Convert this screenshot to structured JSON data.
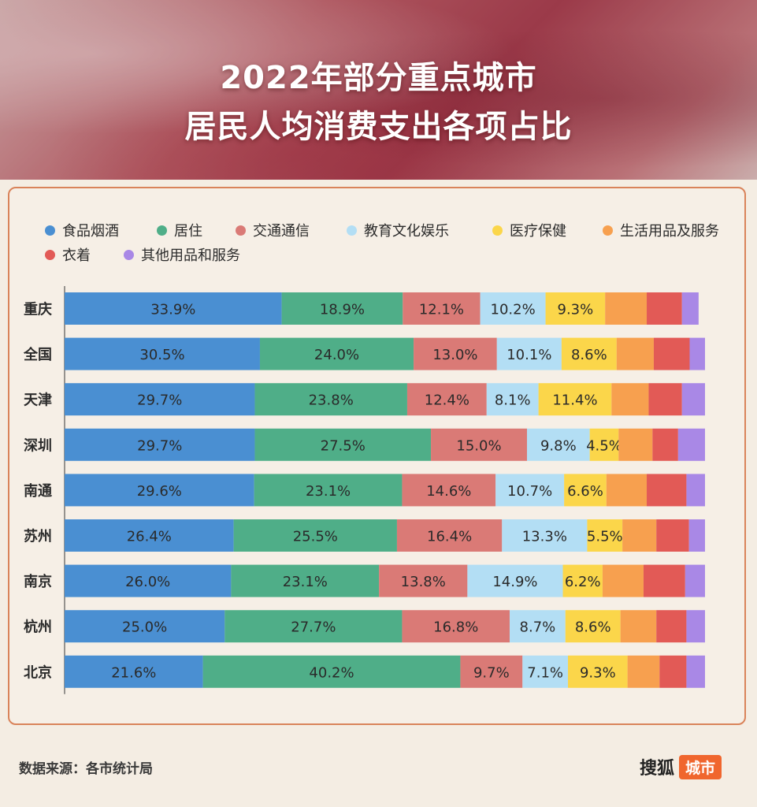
{
  "header": {
    "title_line1": "2022年部分重点城市",
    "title_line2": "居民人均消费支出各项占比"
  },
  "footer": {
    "source": "数据来源：各市统计局",
    "brand_main": "搜狐",
    "brand_tag": "城市"
  },
  "chart_data": {
    "type": "bar",
    "orientation": "horizontal",
    "stacked": true,
    "categories": [
      "重庆",
      "全国",
      "天津",
      "深圳",
      "南通",
      "苏州",
      "南京",
      "杭州",
      "北京"
    ],
    "series": [
      {
        "name": "食品烟酒",
        "color": "#4a8fd2",
        "values": [
          33.9,
          30.5,
          29.7,
          29.7,
          29.6,
          26.4,
          26.0,
          25.0,
          21.6
        ]
      },
      {
        "name": "居住",
        "color": "#4fae88",
        "values": [
          18.9,
          24.0,
          23.8,
          27.5,
          23.1,
          25.5,
          23.1,
          27.7,
          40.2
        ]
      },
      {
        "name": "交通通信",
        "color": "#da7a76",
        "values": [
          12.1,
          13.0,
          12.4,
          15.0,
          14.6,
          16.4,
          13.8,
          16.8,
          9.7
        ]
      },
      {
        "name": "教育文化娱乐",
        "color": "#b3def4",
        "values": [
          10.2,
          10.1,
          8.1,
          9.8,
          10.7,
          13.3,
          14.9,
          8.7,
          7.1
        ]
      },
      {
        "name": "医疗保健",
        "color": "#fbd64a",
        "values": [
          9.3,
          8.6,
          11.4,
          4.5,
          6.6,
          5.5,
          6.2,
          8.6,
          9.3
        ]
      },
      {
        "name": "生活用品及服务",
        "color": "#f7a04f",
        "values": [
          6.5,
          5.8,
          5.8,
          5.3,
          6.3,
          5.3,
          6.4,
          5.6,
          5.0
        ]
      },
      {
        "name": "衣着",
        "color": "#e25a56",
        "values": [
          5.5,
          5.6,
          5.2,
          4.0,
          6.2,
          5.1,
          6.5,
          4.7,
          4.2
        ]
      },
      {
        "name": "其他用品和服务",
        "color": "#a988e6",
        "values": [
          2.6,
          2.4,
          3.6,
          4.2,
          2.9,
          2.5,
          3.1,
          2.9,
          2.9
        ]
      }
    ],
    "labeled_series_count": 5,
    "value_suffix": "%",
    "xlim": [
      0,
      100
    ],
    "legend_position": "top"
  }
}
